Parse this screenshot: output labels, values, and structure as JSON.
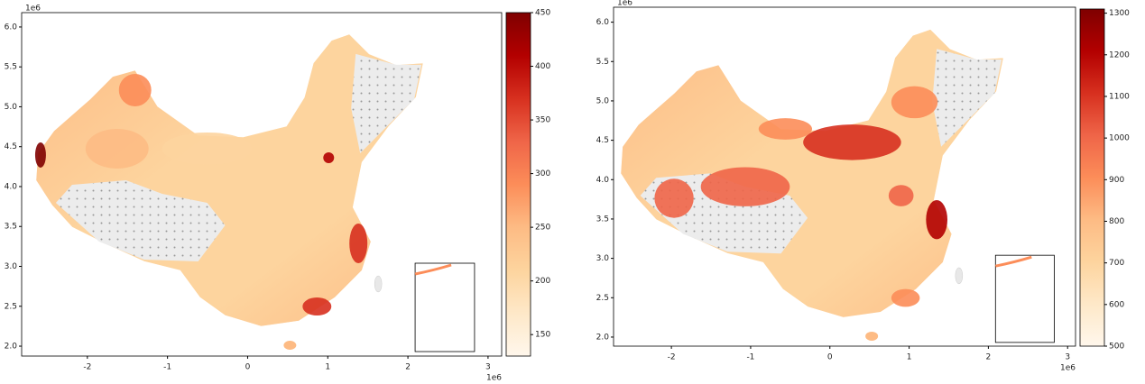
{
  "maps": [
    {
      "x_offset_label": "1e6",
      "y_offset_label": "1e6",
      "xlim": [
        -2.82,
        3.17
      ],
      "ylim": [
        1.876,
        6.18
      ],
      "xticks": [
        -2,
        -1,
        0,
        1,
        2,
        3
      ],
      "yticks": [
        {
          "value": 2,
          "label": "2.0"
        },
        2.5,
        {
          "value": 3,
          "label": "3.0"
        },
        3.5,
        {
          "value": 4,
          "label": "4.0"
        },
        4.5,
        {
          "value": 5,
          "label": "5.0"
        },
        5.5,
        {
          "value": 6,
          "label": "6.0"
        }
      ],
      "colorbar": {
        "lim": [
          130,
          450
        ],
        "ticks": [
          150,
          200,
          250,
          300,
          350,
          400,
          450
        ]
      }
    },
    {
      "x_offset_label": "1e6",
      "y_offset_label": "1e6",
      "xlim": [
        -2.73,
        3.1
      ],
      "ylim": [
        1.885,
        6.19
      ],
      "xticks": [
        -2,
        -1,
        0,
        1,
        2,
        3
      ],
      "yticks": [
        {
          "value": 2,
          "label": "2.0"
        },
        2.5,
        {
          "value": 3,
          "label": "3.0"
        },
        3.5,
        {
          "value": 4,
          "label": "4.0"
        },
        4.5,
        {
          "value": 5,
          "label": "5.0"
        },
        5.5,
        {
          "value": 6,
          "label": "6.0"
        }
      ],
      "colorbar": {
        "lim": [
          500,
          1310
        ],
        "ticks": [
          500,
          600,
          700,
          800,
          900,
          1000,
          1100,
          1200,
          1300
        ]
      }
    }
  ],
  "colormap": [
    "#fff7ec",
    "#fee8c8",
    "#fdd49e",
    "#fdbb84",
    "#fc8d59",
    "#ef6548",
    "#d7301f",
    "#b30000",
    "#7f0000"
  ]
}
